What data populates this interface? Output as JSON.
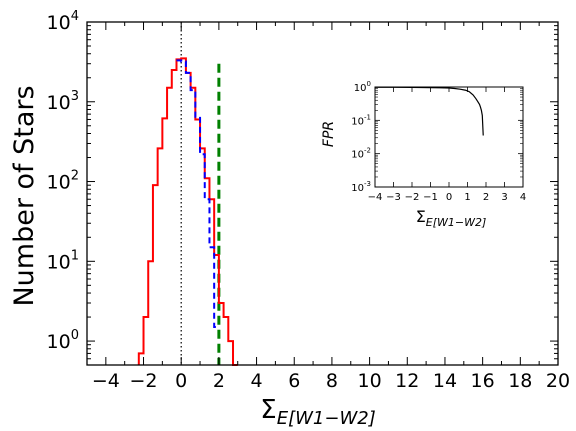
{
  "chart_data": [
    {
      "type": "histogram",
      "ylabel": "Number of Stars",
      "xlabel": {
        "base": "Σ",
        "sub": "E[W1−W2]"
      },
      "xlim": [
        -5,
        20
      ],
      "ylim_log10": [
        -0.3,
        4
      ],
      "yscale": "log",
      "xticks": [
        -4,
        -2,
        0,
        2,
        4,
        6,
        8,
        10,
        12,
        14,
        16,
        18,
        20
      ],
      "xtick_labels": [
        "−4",
        "−2",
        "0",
        "2",
        "4",
        "6",
        "8",
        "10",
        "12",
        "14",
        "16",
        "18",
        "20"
      ],
      "yticks_exp": [
        0,
        1,
        2,
        3,
        4
      ],
      "series": [
        {
          "style": "red-solid-step",
          "color": "#ff0000",
          "bin_edges": [
            -2.25,
            -2.0,
            -1.75,
            -1.5,
            -1.25,
            -1.0,
            -0.75,
            -0.5,
            -0.25,
            0.0,
            0.25,
            0.5,
            0.75,
            1.0,
            1.25,
            1.5,
            1.75,
            2.0,
            2.25,
            2.5,
            2.75,
            3.0
          ],
          "counts": [
            0.7,
            2,
            10,
            90,
            260,
            620,
            1500,
            2500,
            3400,
            3500,
            2300,
            1500,
            600,
            260,
            110,
            60,
            12,
            3,
            2,
            1,
            0.5
          ]
        },
        {
          "style": "blue-dashed-step",
          "color": "#0000ff",
          "bin_edges": [
            -0.25,
            0.0,
            0.25,
            0.5,
            0.75,
            1.0,
            1.25,
            1.5,
            1.75,
            2.0
          ],
          "counts": [
            3300,
            3200,
            2300,
            1400,
            650,
            220,
            60,
            15,
            1.5
          ]
        }
      ],
      "reference_lines": [
        {
          "x": 0,
          "style": "black-dotted",
          "color": "#000000"
        },
        {
          "x": 2,
          "style": "green-dashed",
          "color": "#008000"
        }
      ]
    },
    {
      "type": "line",
      "inset": true,
      "ylabel": "FPR",
      "xlabel": {
        "base": "Σ",
        "sub": "E[W1−W2]"
      },
      "xlim": [
        -4,
        4
      ],
      "ylim_log10": [
        -3,
        0
      ],
      "yscale": "log",
      "xticks": [
        -4,
        -3,
        -2,
        -1,
        0,
        1,
        2,
        3,
        4
      ],
      "xtick_labels": [
        "−4",
        "−3",
        "−2",
        "−1",
        "0",
        "1",
        "2",
        "3",
        "4"
      ],
      "yticks_exp": [
        -3,
        -2,
        -1,
        0
      ],
      "series": [
        {
          "color": "#000000",
          "x": [
            -4,
            -3,
            -2,
            -1,
            -0.5,
            0,
            0.3,
            0.6,
            0.9,
            1.1,
            1.3,
            1.45,
            1.55,
            1.65,
            1.7,
            1.75,
            1.8,
            1.82,
            1.85
          ],
          "y": [
            0.98,
            0.98,
            0.97,
            0.96,
            0.95,
            0.93,
            0.9,
            0.86,
            0.8,
            0.72,
            0.58,
            0.45,
            0.37,
            0.3,
            0.25,
            0.2,
            0.14,
            0.08,
            0.035
          ]
        }
      ]
    }
  ]
}
